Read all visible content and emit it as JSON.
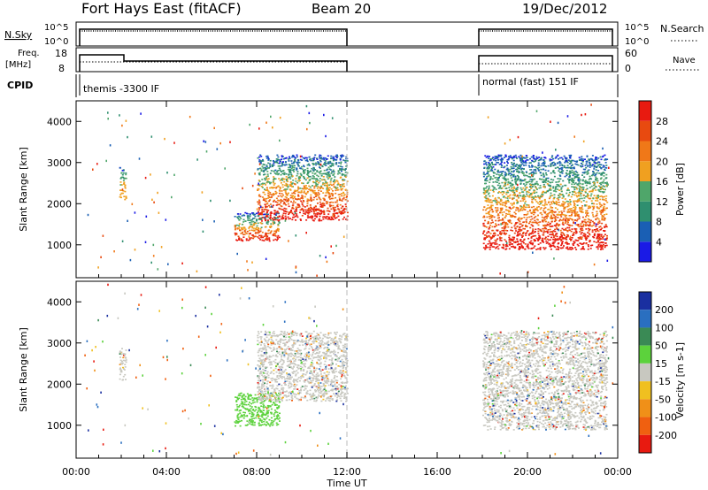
{
  "header": {
    "station": "Fort Hays East (fitACF)",
    "beam": "Beam 20",
    "date": "19/Dec/2012"
  },
  "strip_panels": {
    "nsky": {
      "label": "N.Sky",
      "ticks": [
        "10^5",
        "10^0"
      ],
      "right_label": "N.Search",
      "right_ticks": [
        "10^5",
        "10^0"
      ]
    },
    "freq": {
      "label_line1": "Freq.",
      "label_line2": "[MHz]",
      "ticks": [
        "18",
        "8"
      ],
      "right_label": "Nave",
      "right_ticks": [
        "60",
        "0"
      ]
    },
    "cpid": {
      "label": "CPID",
      "segments": [
        {
          "name": "themis -3300 IF",
          "start_hour": 0.0,
          "end_hour": 12.0
        },
        {
          "name": "normal (fast) 151 IF",
          "start_hour": 18.0,
          "end_hour": 24.0
        }
      ]
    }
  },
  "colors": {
    "power": [
      "#1a1ae6",
      "#1a5fb4",
      "#2f8f6f",
      "#4fa66a",
      "#f0a020",
      "#f07818",
      "#e84a10",
      "#e81a10"
    ],
    "velocity": [
      "#1a2fa0",
      "#2a6fc0",
      "#3a8a55",
      "#5cd23c",
      "#c8c8c0",
      "#f0c020",
      "#f09018",
      "#f06010",
      "#e81a10"
    ],
    "gray_scatter": "#c8c8c0"
  },
  "chart_data": [
    {
      "type": "heatmap",
      "name": "power",
      "xlabel": "",
      "ylabel": "Slant Range [km]",
      "x_range_hours": [
        0,
        24
      ],
      "y_range_km": [
        200,
        4500
      ],
      "y_ticks": [
        "1000",
        "2000",
        "3000",
        "4000"
      ],
      "colorbar_label": "Power [dB]",
      "colorbar_ticks": [
        "4",
        "8",
        "12",
        "16",
        "20",
        "24",
        "28"
      ],
      "regions": [
        {
          "hours": [
            1.9,
            2.2
          ],
          "range_km": [
            2100,
            2900
          ],
          "level": "mid"
        },
        {
          "hours": [
            7.0,
            9.0
          ],
          "range_km": [
            1100,
            1800
          ],
          "level": "mid-high"
        },
        {
          "hours": [
            8.0,
            12.0
          ],
          "range_km": [
            1600,
            3200
          ],
          "level": "high"
        },
        {
          "hours": [
            18.0,
            23.5
          ],
          "range_km": [
            900,
            3200
          ],
          "level": "high"
        }
      ]
    },
    {
      "type": "heatmap",
      "name": "velocity",
      "xlabel": "Time UT",
      "ylabel": "Slant Range [km]",
      "x_ticks": [
        "00:00",
        "04:00",
        "08:00",
        "12:00",
        "16:00",
        "20:00",
        "00:00"
      ],
      "x_range_hours": [
        0,
        24
      ],
      "y_range_km": [
        200,
        4500
      ],
      "y_ticks": [
        "1000",
        "2000",
        "3000",
        "4000"
      ],
      "colorbar_label": "Velocity [m s-1]",
      "colorbar_ticks": [
        "200",
        "100",
        "50",
        "15",
        "-15",
        "-50",
        "-100",
        "-200"
      ],
      "regions": [
        {
          "hours": [
            1.9,
            2.2
          ],
          "range_km": [
            2100,
            2900
          ],
          "class": "ground"
        },
        {
          "hours": [
            7.0,
            9.0
          ],
          "range_km": [
            1000,
            1800
          ],
          "class": "positive-15-50"
        },
        {
          "hours": [
            8.0,
            12.0
          ],
          "range_km": [
            1600,
            3300
          ],
          "class": "ground"
        },
        {
          "hours": [
            18.0,
            23.5
          ],
          "range_km": [
            900,
            3300
          ],
          "class": "ground"
        }
      ]
    }
  ]
}
